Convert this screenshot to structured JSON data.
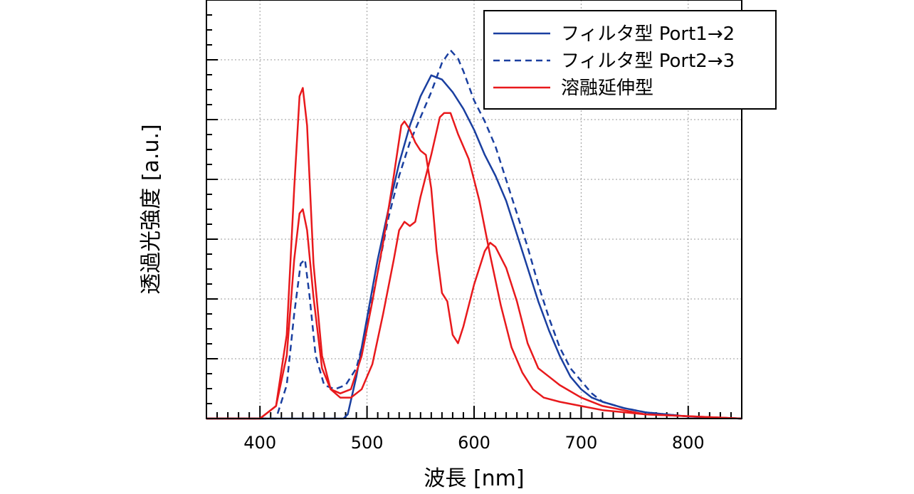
{
  "chart_data": {
    "type": "line",
    "title": "",
    "xlabel": "波長 [nm]",
    "ylabel": "透過光強度 [a.u.]",
    "xlim": [
      350,
      850
    ],
    "ylim": [
      0,
      1.0
    ],
    "x_ticks": [
      400,
      500,
      600,
      700,
      800
    ],
    "y_tick_labels_shown": false,
    "grid": true,
    "legend_position": "top-right",
    "colors": {
      "blue": "#1a3fa0",
      "red": "#e8191c"
    },
    "series": [
      {
        "name": "フィルタ型 Port1→2",
        "color": "#1a3fa0",
        "dash": "solid",
        "points": [
          [
            350,
            0.0
          ],
          [
            400,
            0.0
          ],
          [
            440,
            0.0
          ],
          [
            470,
            0.0
          ],
          [
            478,
            0.0
          ],
          [
            482,
            0.01
          ],
          [
            490,
            0.1
          ],
          [
            500,
            0.24
          ],
          [
            510,
            0.38
          ],
          [
            520,
            0.5
          ],
          [
            530,
            0.61
          ],
          [
            540,
            0.7
          ],
          [
            550,
            0.77
          ],
          [
            560,
            0.82
          ],
          [
            570,
            0.81
          ],
          [
            580,
            0.78
          ],
          [
            590,
            0.74
          ],
          [
            600,
            0.69
          ],
          [
            610,
            0.63
          ],
          [
            620,
            0.58
          ],
          [
            630,
            0.52
          ],
          [
            640,
            0.44
          ],
          [
            650,
            0.36
          ],
          [
            660,
            0.28
          ],
          [
            670,
            0.21
          ],
          [
            680,
            0.15
          ],
          [
            690,
            0.1
          ],
          [
            700,
            0.07
          ],
          [
            710,
            0.05
          ],
          [
            720,
            0.04
          ],
          [
            740,
            0.025
          ],
          [
            760,
            0.015
          ],
          [
            800,
            0.005
          ],
          [
            850,
            0.0
          ]
        ]
      },
      {
        "name": "フィルタ型 Port2→3",
        "color": "#1a3fa0",
        "dash": "dashed",
        "points": [
          [
            350,
            0.0
          ],
          [
            415,
            0.0
          ],
          [
            425,
            0.08
          ],
          [
            432,
            0.25
          ],
          [
            438,
            0.37
          ],
          [
            442,
            0.38
          ],
          [
            446,
            0.3
          ],
          [
            452,
            0.15
          ],
          [
            460,
            0.08
          ],
          [
            470,
            0.07
          ],
          [
            480,
            0.08
          ],
          [
            490,
            0.12
          ],
          [
            500,
            0.22
          ],
          [
            510,
            0.35
          ],
          [
            520,
            0.48
          ],
          [
            530,
            0.58
          ],
          [
            540,
            0.66
          ],
          [
            550,
            0.72
          ],
          [
            560,
            0.78
          ],
          [
            570,
            0.85
          ],
          [
            578,
            0.88
          ],
          [
            585,
            0.86
          ],
          [
            590,
            0.83
          ],
          [
            600,
            0.76
          ],
          [
            610,
            0.71
          ],
          [
            620,
            0.65
          ],
          [
            630,
            0.57
          ],
          [
            640,
            0.49
          ],
          [
            650,
            0.41
          ],
          [
            660,
            0.32
          ],
          [
            670,
            0.24
          ],
          [
            680,
            0.17
          ],
          [
            690,
            0.12
          ],
          [
            700,
            0.09
          ],
          [
            710,
            0.06
          ],
          [
            720,
            0.04
          ],
          [
            740,
            0.025
          ],
          [
            760,
            0.015
          ],
          [
            800,
            0.005
          ],
          [
            850,
            0.0
          ]
        ]
      },
      {
        "name": "溶融延伸型",
        "color": "#e8191c",
        "dash": "solid",
        "points": [
          [
            350,
            0.0
          ],
          [
            400,
            0.0
          ],
          [
            415,
            0.03
          ],
          [
            425,
            0.2
          ],
          [
            432,
            0.55
          ],
          [
            437,
            0.77
          ],
          [
            440,
            0.79
          ],
          [
            444,
            0.7
          ],
          [
            450,
            0.37
          ],
          [
            458,
            0.15
          ],
          [
            466,
            0.07
          ],
          [
            475,
            0.05
          ],
          [
            485,
            0.05
          ],
          [
            495,
            0.07
          ],
          [
            505,
            0.13
          ],
          [
            515,
            0.25
          ],
          [
            525,
            0.38
          ],
          [
            530,
            0.45
          ],
          [
            535,
            0.47
          ],
          [
            540,
            0.46
          ],
          [
            545,
            0.47
          ],
          [
            550,
            0.53
          ],
          [
            560,
            0.63
          ],
          [
            568,
            0.72
          ],
          [
            572,
            0.73
          ],
          [
            578,
            0.73
          ],
          [
            585,
            0.68
          ],
          [
            595,
            0.62
          ],
          [
            605,
            0.52
          ],
          [
            615,
            0.39
          ],
          [
            625,
            0.27
          ],
          [
            635,
            0.17
          ],
          [
            645,
            0.11
          ],
          [
            655,
            0.07
          ],
          [
            665,
            0.05
          ],
          [
            680,
            0.04
          ],
          [
            700,
            0.03
          ],
          [
            720,
            0.02
          ],
          [
            760,
            0.01
          ],
          [
            850,
            0.0
          ]
        ]
      },
      {
        "name": "",
        "color": "#e8191c",
        "dash": "solid",
        "points": [
          [
            350,
            0.0
          ],
          [
            400,
            0.0
          ],
          [
            415,
            0.03
          ],
          [
            425,
            0.15
          ],
          [
            432,
            0.38
          ],
          [
            437,
            0.49
          ],
          [
            440,
            0.5
          ],
          [
            444,
            0.45
          ],
          [
            450,
            0.29
          ],
          [
            458,
            0.12
          ],
          [
            466,
            0.07
          ],
          [
            475,
            0.06
          ],
          [
            485,
            0.07
          ],
          [
            495,
            0.15
          ],
          [
            505,
            0.28
          ],
          [
            515,
            0.42
          ],
          [
            525,
            0.58
          ],
          [
            532,
            0.7
          ],
          [
            535,
            0.71
          ],
          [
            540,
            0.69
          ],
          [
            545,
            0.66
          ],
          [
            550,
            0.64
          ],
          [
            555,
            0.63
          ],
          [
            560,
            0.55
          ],
          [
            565,
            0.4
          ],
          [
            570,
            0.3
          ],
          [
            575,
            0.28
          ],
          [
            580,
            0.2
          ],
          [
            585,
            0.18
          ],
          [
            590,
            0.22
          ],
          [
            600,
            0.32
          ],
          [
            610,
            0.4
          ],
          [
            615,
            0.42
          ],
          [
            620,
            0.41
          ],
          [
            630,
            0.36
          ],
          [
            640,
            0.28
          ],
          [
            650,
            0.18
          ],
          [
            660,
            0.12
          ],
          [
            670,
            0.1
          ],
          [
            680,
            0.08
          ],
          [
            700,
            0.05
          ],
          [
            720,
            0.03
          ],
          [
            760,
            0.01
          ],
          [
            850,
            0.0
          ]
        ]
      }
    ]
  }
}
